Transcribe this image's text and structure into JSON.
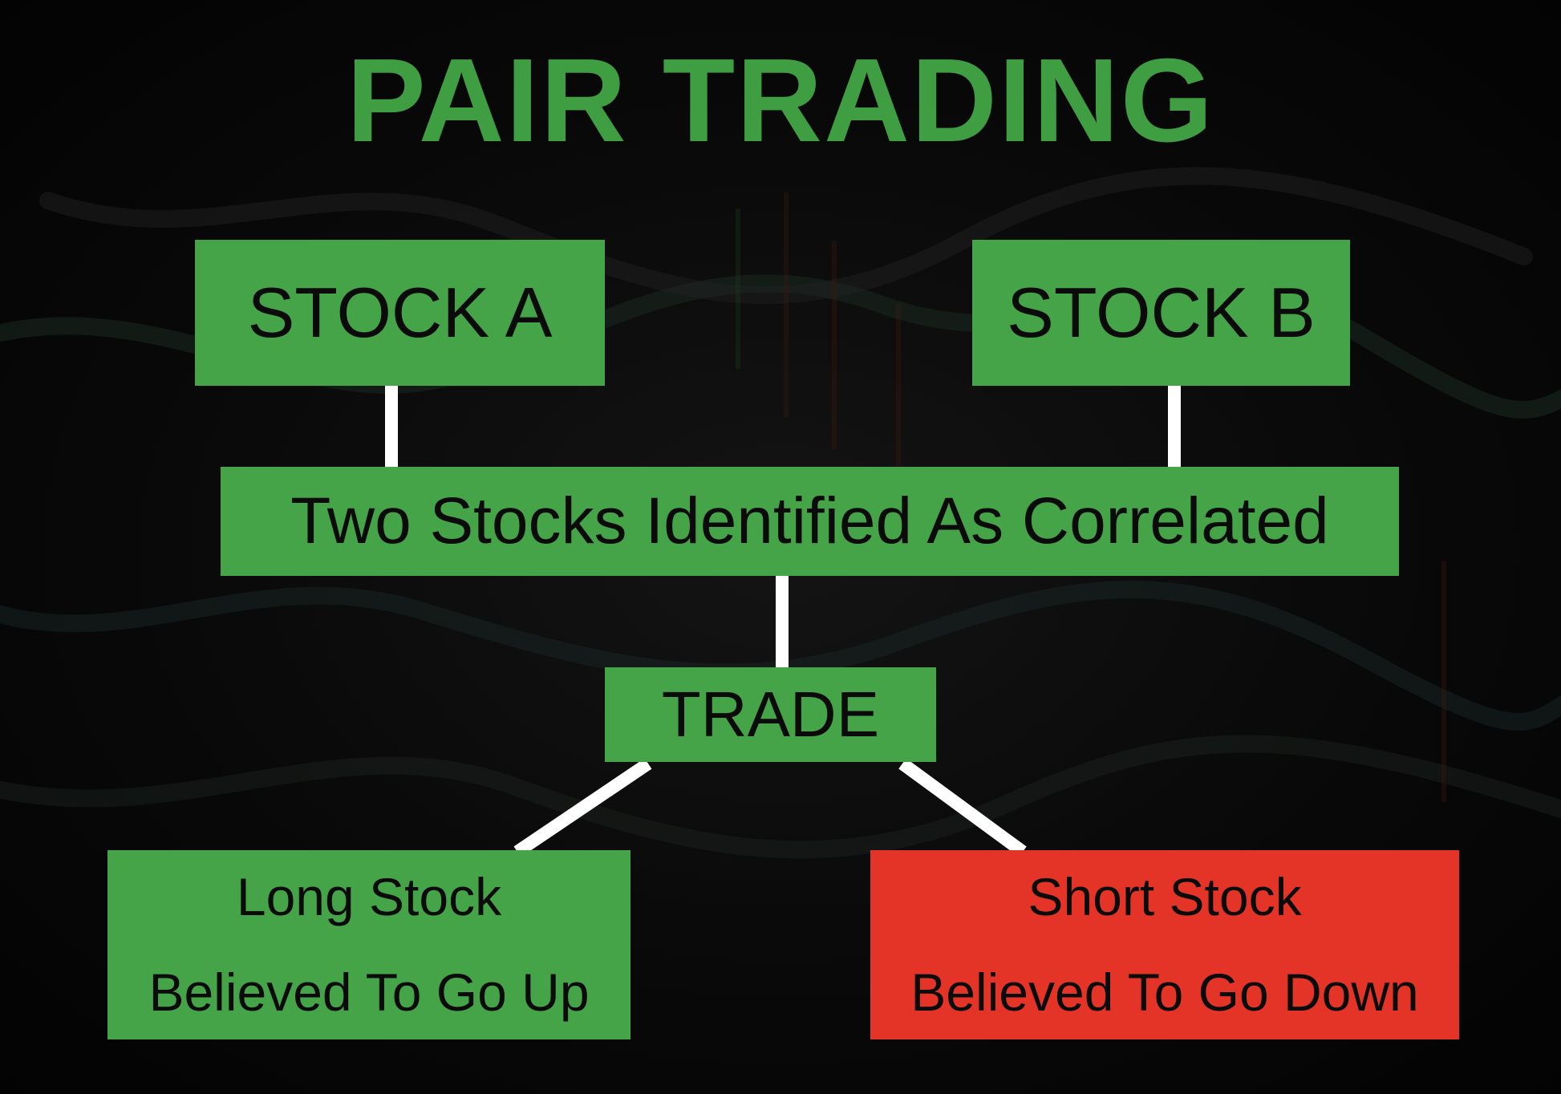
{
  "title": "PAIR TRADING",
  "nodes": {
    "stock_a": "STOCK A",
    "stock_b": "STOCK B",
    "correlated": "Two Stocks Identified As Correlated",
    "trade": "TRADE",
    "long": {
      "line1": "Long Stock",
      "line2": "Believed To Go Up"
    },
    "short": {
      "line1": "Short Stock",
      "line2": "Believed To Go Down"
    }
  },
  "colors": {
    "title": "#3f9e41",
    "box_green": "#45a348",
    "box_red": "#e43427",
    "connector": "#ffffff",
    "text": "#0b0b0b",
    "background": "#050505"
  }
}
